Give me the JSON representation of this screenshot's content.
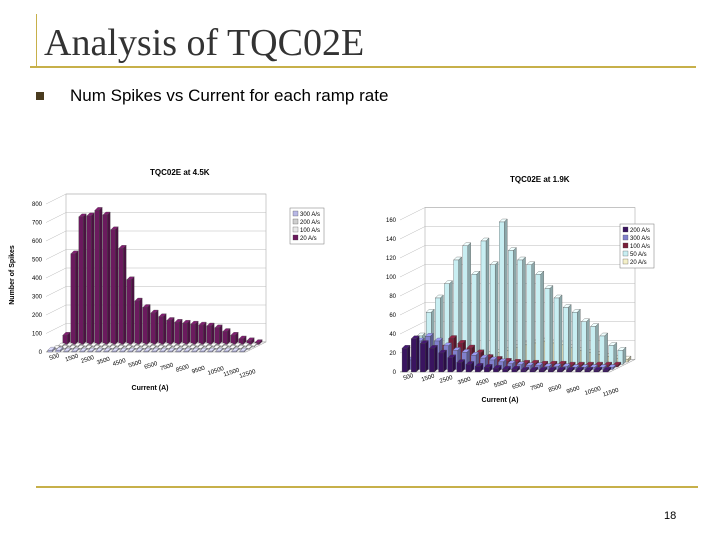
{
  "slide": {
    "title": "Analysis of TQC02E",
    "bullet": "Num Spikes vs Current for each ramp rate",
    "page_number": "18"
  },
  "colors": {
    "accent_line": "#c7b04a",
    "bullet": "#4a3b1f"
  },
  "chart_data": [
    {
      "type": "bar",
      "title": "TQC02E at 4.5K",
      "xlabel": "Current (A)",
      "ylabel": "Number of Spikes",
      "ylim": [
        0,
        800
      ],
      "yticks": [
        0,
        100,
        200,
        300,
        400,
        500,
        600,
        700,
        800
      ],
      "xtick_labels": [
        "500",
        "1500",
        "2500",
        "3500",
        "4500",
        "5500",
        "6500",
        "7500",
        "8500",
        "9500",
        "10500",
        "11500",
        "12500"
      ],
      "legend": [
        "300 A/s",
        "200 A/s",
        "100 A/s",
        "20 A/s"
      ],
      "legend_placement": "top-right",
      "grid": true,
      "categories": [
        "500",
        "1000",
        "1500",
        "2000",
        "2500",
        "3000",
        "3500",
        "4000",
        "4500",
        "5000",
        "5500",
        "6000",
        "6500",
        "7000",
        "7500",
        "8000",
        "8500",
        "9000",
        "9500",
        "10000",
        "10500",
        "11000",
        "11500",
        "12000",
        "12500"
      ],
      "series": [
        {
          "name": "300 A/s",
          "color": "#b8b8e6",
          "values": [
            10,
            10,
            5,
            5,
            5,
            5,
            5,
            5,
            5,
            5,
            5,
            5,
            5,
            5,
            5,
            5,
            5,
            5,
            5,
            5,
            5,
            5,
            5,
            5,
            5
          ]
        },
        {
          "name": "200 A/s",
          "color": "#cfcfcf",
          "values": [
            5,
            5,
            5,
            5,
            5,
            5,
            5,
            5,
            5,
            5,
            5,
            5,
            5,
            5,
            5,
            5,
            5,
            5,
            5,
            5,
            5,
            5,
            5,
            5,
            5
          ]
        },
        {
          "name": "100 A/s",
          "color": "#e8e8e8",
          "values": [
            5,
            5,
            5,
            5,
            5,
            5,
            5,
            5,
            5,
            5,
            5,
            5,
            5,
            5,
            5,
            5,
            5,
            5,
            5,
            5,
            5,
            5,
            5,
            5,
            5
          ]
        },
        {
          "name": "20 A/s",
          "color": "#6b1a5e",
          "values": [
            50,
            490,
            690,
            695,
            725,
            700,
            620,
            520,
            350,
            235,
            200,
            170,
            150,
            130,
            120,
            115,
            110,
            105,
            100,
            90,
            70,
            50,
            30,
            20,
            10
          ]
        }
      ]
    },
    {
      "type": "bar",
      "title": "TQC02E at 1.9K",
      "xlabel": "Current (A)",
      "ylabel": "",
      "ylim": [
        0,
        160
      ],
      "yticks": [
        0,
        20,
        40,
        60,
        80,
        100,
        120,
        140,
        160
      ],
      "xtick_labels": [
        "500",
        "1500",
        "2500",
        "3500",
        "4500",
        "5500",
        "6500",
        "7500",
        "8500",
        "9500",
        "10500",
        "11500"
      ],
      "legend": [
        "200 A/s",
        "300 A/s",
        "100 A/s",
        "50 A/s",
        "20 A/s"
      ],
      "legend_placement": "right",
      "grid": true,
      "categories": [
        "500",
        "1000",
        "1500",
        "2000",
        "2500",
        "3000",
        "3500",
        "4000",
        "4500",
        "5000",
        "5500",
        "6000",
        "6500",
        "7000",
        "7500",
        "8000",
        "8500",
        "9000",
        "9500",
        "10000",
        "10500",
        "11000",
        "11500"
      ],
      "series": [
        {
          "name": "200 A/s",
          "color": "#3a1460",
          "values": [
            25,
            35,
            30,
            25,
            20,
            15,
            10,
            8,
            6,
            5,
            4,
            3,
            3,
            2,
            2,
            2,
            2,
            2,
            2,
            2,
            2,
            2,
            2
          ]
        },
        {
          "name": "300 A/s",
          "color": "#8080cc",
          "values": [
            10,
            30,
            35,
            30,
            25,
            20,
            18,
            15,
            12,
            10,
            8,
            6,
            5,
            4,
            4,
            3,
            3,
            3,
            2,
            2,
            2,
            2,
            2
          ]
        },
        {
          "name": "100 A/s",
          "color": "#7a1f3a",
          "values": [
            5,
            10,
            15,
            20,
            30,
            25,
            20,
            15,
            10,
            8,
            6,
            5,
            4,
            4,
            3,
            3,
            3,
            2,
            2,
            2,
            2,
            2,
            2
          ]
        },
        {
          "name": "50 A/s",
          "color": "#c8eef2",
          "values": [
            30,
            55,
            70,
            85,
            110,
            125,
            95,
            130,
            105,
            150,
            120,
            110,
            105,
            95,
            80,
            70,
            60,
            55,
            45,
            40,
            30,
            20,
            15
          ]
        },
        {
          "name": "20 A/s",
          "color": "#f4f0c8",
          "values": [
            2,
            3,
            3,
            4,
            4,
            5,
            6,
            8,
            10,
            12,
            15,
            18,
            20,
            22,
            20,
            18,
            15,
            12,
            10,
            8,
            6,
            4,
            3
          ]
        }
      ]
    }
  ]
}
